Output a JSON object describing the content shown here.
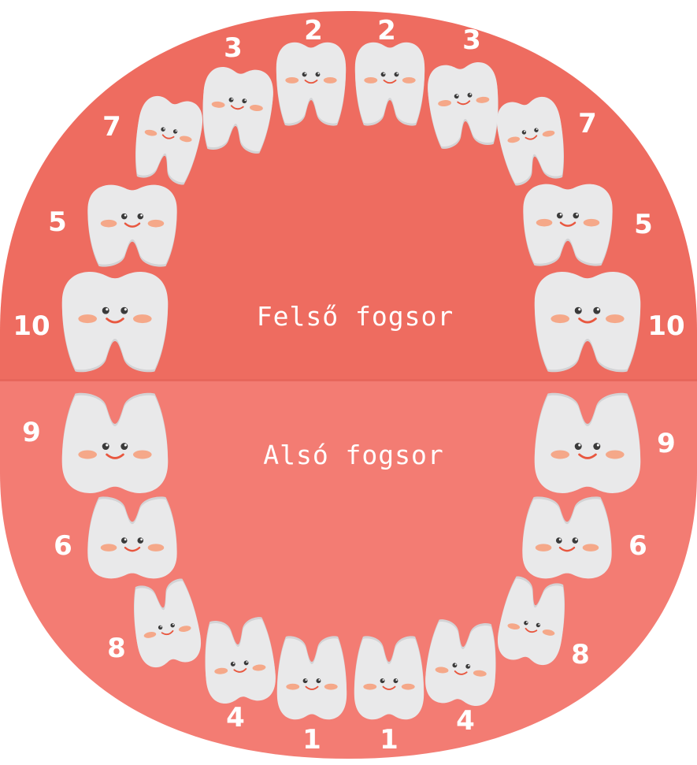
{
  "labels": {
    "upper": "Felső fogsor",
    "lower": "Alsó fogsor"
  },
  "colors": {
    "upper_gum": "#ee6c60",
    "lower_gum": "#f37c73",
    "divider": "#e7665b",
    "tooth": "#e9e9ea",
    "tooth_shade": "#d3d3d5",
    "eye": "#3a3a3a",
    "mouth": "#e8573f",
    "cheek": "#f5a889",
    "number": "#ffffff",
    "label": "#ffffff"
  },
  "teeth": {
    "upper": [
      {
        "id": "upper-right-10",
        "eruption_order": "10",
        "kind": "molar"
      },
      {
        "id": "upper-right-5",
        "eruption_order": "5",
        "kind": "molar"
      },
      {
        "id": "upper-right-7",
        "eruption_order": "7",
        "kind": "canine"
      },
      {
        "id": "upper-right-3",
        "eruption_order": "3",
        "kind": "incisor"
      },
      {
        "id": "upper-right-2",
        "eruption_order": "2",
        "kind": "incisor"
      },
      {
        "id": "upper-left-2",
        "eruption_order": "2",
        "kind": "incisor"
      },
      {
        "id": "upper-left-3",
        "eruption_order": "3",
        "kind": "incisor"
      },
      {
        "id": "upper-left-7",
        "eruption_order": "7",
        "kind": "canine"
      },
      {
        "id": "upper-left-5",
        "eruption_order": "5",
        "kind": "molar"
      },
      {
        "id": "upper-left-10",
        "eruption_order": "10",
        "kind": "molar"
      }
    ],
    "lower": [
      {
        "id": "lower-right-9",
        "eruption_order": "9",
        "kind": "molar"
      },
      {
        "id": "lower-right-6",
        "eruption_order": "6",
        "kind": "molar"
      },
      {
        "id": "lower-right-8",
        "eruption_order": "8",
        "kind": "canine"
      },
      {
        "id": "lower-right-4",
        "eruption_order": "4",
        "kind": "incisor"
      },
      {
        "id": "lower-right-1",
        "eruption_order": "1",
        "kind": "incisor"
      },
      {
        "id": "lower-left-1",
        "eruption_order": "1",
        "kind": "incisor"
      },
      {
        "id": "lower-left-4",
        "eruption_order": "4",
        "kind": "incisor"
      },
      {
        "id": "lower-left-8",
        "eruption_order": "8",
        "kind": "canine"
      },
      {
        "id": "lower-left-6",
        "eruption_order": "6",
        "kind": "molar"
      },
      {
        "id": "lower-left-9",
        "eruption_order": "9",
        "kind": "molar"
      }
    ]
  }
}
